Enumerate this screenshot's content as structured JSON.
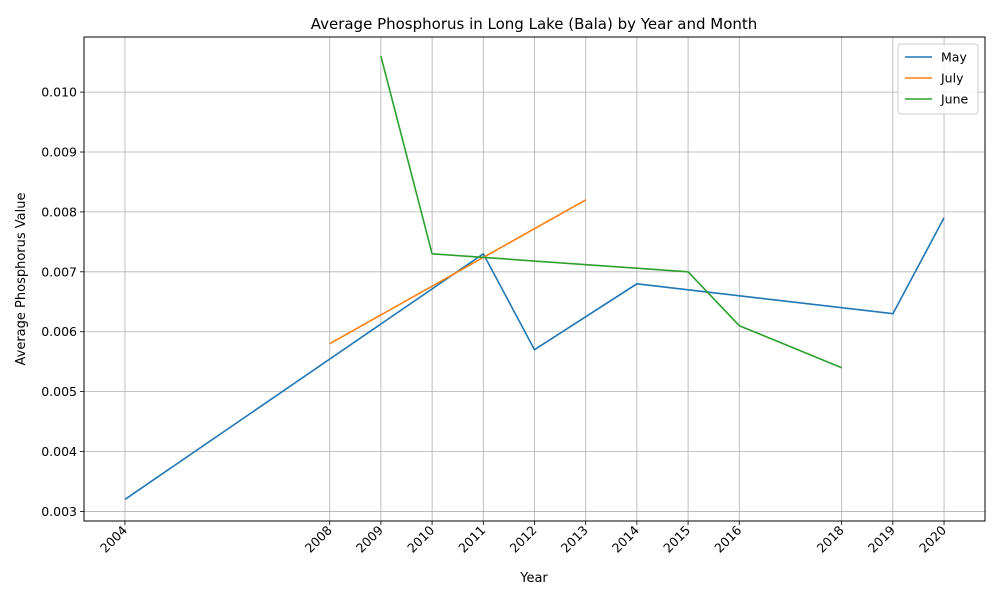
{
  "chart_data": {
    "type": "line",
    "title": "Average Phosphorus in Long Lake (Bala) by Year and Month",
    "xlabel": "Year",
    "ylabel": "Average Phosphorus Value",
    "x_ticks": [
      "2004",
      "2008",
      "2009",
      "2010",
      "2011",
      "2012",
      "2013",
      "2014",
      "2015",
      "2016",
      "2018",
      "2019",
      "2020"
    ],
    "y_ticks": [
      "0.003",
      "0.004",
      "0.005",
      "0.006",
      "0.007",
      "0.008",
      "0.009",
      "0.010"
    ],
    "xlim": [
      2003.2,
      2020.8
    ],
    "ylim": [
      0.00284,
      0.01092
    ],
    "grid": true,
    "legend_position": "top-right",
    "series": [
      {
        "name": "May",
        "color": "#1f77b4",
        "x": [
          2004,
          2011,
          2012,
          2014,
          2019,
          2020
        ],
        "y": [
          0.0032,
          0.0073,
          0.0057,
          0.0068,
          0.0063,
          0.0079
        ]
      },
      {
        "name": "July",
        "color": "#ff7f0e",
        "x": [
          2008,
          2013
        ],
        "y": [
          0.0058,
          0.0082
        ]
      },
      {
        "name": "June",
        "color": "#2ca02c",
        "x": [
          2009,
          2010,
          2015,
          2016,
          2018
        ],
        "y": [
          0.0106,
          0.0073,
          0.007,
          0.0061,
          0.0054
        ]
      }
    ]
  }
}
